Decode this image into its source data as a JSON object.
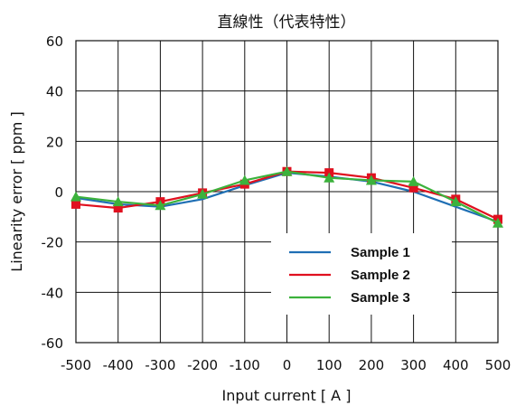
{
  "chart_data": {
    "type": "line",
    "title": "直線性（代表特性）",
    "xlabel": "Input current [ A ]",
    "ylabel": "Linearity error [ ppm ]",
    "x": [
      -500,
      -400,
      -300,
      -200,
      -100,
      0,
      100,
      200,
      300,
      400,
      500
    ],
    "xticks": [
      "-500",
      "-400",
      "-300",
      "-200",
      "-100",
      "0",
      "100",
      "200",
      "300",
      "400",
      "500"
    ],
    "yticks": [
      "-60",
      "-40",
      "-20",
      "0",
      "20",
      "40",
      "60"
    ],
    "xlim": [
      -500,
      500
    ],
    "ylim": [
      -60,
      60
    ],
    "grid": true,
    "legend_position": "bottom-right",
    "series": [
      {
        "name": "Sample 1",
        "color": "#1f6fb4",
        "marker": "none",
        "values": [
          -2.5,
          -5,
          -6,
          -3,
          2.5,
          7.5,
          6,
          4,
          0,
          -6,
          -12
        ]
      },
      {
        "name": "Sample 2",
        "color": "#e0101f",
        "marker": "square",
        "values": [
          -5,
          -6.5,
          -4,
          -0.5,
          3,
          8,
          7.5,
          5.5,
          1.5,
          -3,
          -11
        ]
      },
      {
        "name": "Sample 3",
        "color": "#3cb23c",
        "marker": "triangle",
        "values": [
          -2,
          -4,
          -5.5,
          -1,
          4.5,
          8,
          5.5,
          4.5,
          4,
          -4,
          -12.5
        ]
      }
    ]
  }
}
